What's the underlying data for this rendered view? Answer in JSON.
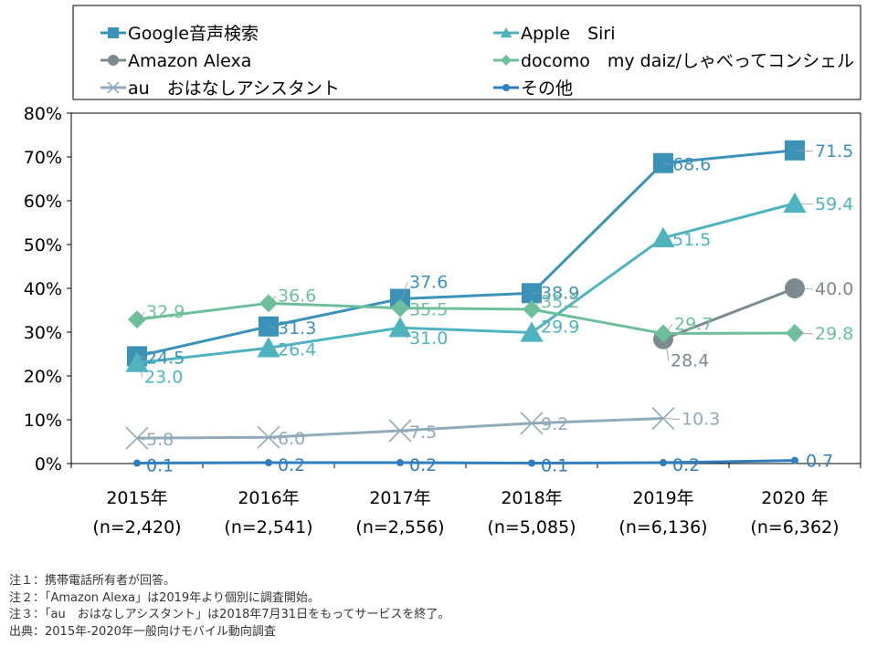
{
  "chart_data": {
    "type": "line",
    "categories": [
      "2015年",
      "2016年",
      "2017年",
      "2018年",
      "2019年",
      "2020 年"
    ],
    "category_sublabels": [
      "(n=2,420)",
      "(n=2,541)",
      "(n=2,556)",
      "(n=5,085)",
      "(n=6,136)",
      "(n=6,362)"
    ],
    "y_ticks": [
      "0%",
      "10%",
      "20%",
      "30%",
      "40%",
      "50%",
      "60%",
      "70%",
      "80%"
    ],
    "ylim": [
      0,
      80
    ],
    "grid": false,
    "legend_position": "top",
    "series": [
      {
        "name": "Google音声検索",
        "color": "#3a92b8",
        "marker": "square",
        "values": [
          24.5,
          31.3,
          37.6,
          38.9,
          68.6,
          71.5
        ],
        "labels": [
          "24.5",
          "31.3",
          "37.6",
          "38.9",
          "68.6",
          "71.5"
        ]
      },
      {
        "name": "Apple　Siri",
        "color": "#4db3bf",
        "marker": "triangle",
        "values": [
          23.0,
          26.4,
          31.0,
          29.9,
          51.5,
          59.4
        ],
        "labels": [
          "23.0",
          "26.4",
          "31.0",
          "29.9",
          "51.5",
          "59.4"
        ]
      },
      {
        "name": "Amazon Alexa",
        "color": "#7a8a8f",
        "marker": "circle",
        "values": [
          null,
          null,
          null,
          null,
          28.4,
          40.0
        ],
        "labels": [
          "",
          "",
          "",
          "",
          "28.4",
          "40.0"
        ]
      },
      {
        "name": "docomo　my daiz/しゃべってコンシェル",
        "color": "#6dbf9c",
        "marker": "diamond",
        "values": [
          32.9,
          36.6,
          35.5,
          35.2,
          29.7,
          29.8
        ],
        "labels": [
          "32.9",
          "36.6",
          "35.5",
          "35.2",
          "29.7",
          "29.8"
        ]
      },
      {
        "name": "au　おはなしアシスタント",
        "color": "#8fabb9",
        "marker": "cross",
        "values": [
          5.8,
          6.0,
          7.5,
          9.2,
          10.3,
          null
        ],
        "labels": [
          "5.8",
          "6.0",
          "7.5",
          "9.2",
          "10.3",
          ""
        ]
      },
      {
        "name": "その他",
        "color": "#2f7fbf",
        "marker": "dot",
        "values": [
          0.1,
          0.2,
          0.2,
          0.1,
          0.2,
          0.7
        ],
        "labels": [
          "0.1",
          "0.2",
          "0.2",
          "0.1",
          "0.2",
          "0.7"
        ]
      }
    ]
  },
  "notes": [
    "注１：携帯電話所有者が回答。",
    "注２：「Amazon Alexa」は2019年より個別に調査開始。",
    "注３：「au　おはなしアシスタント」は2018年7月31日をもってサービスを終了。",
    "出典：2015年-2020年一般向けモバイル動向調査"
  ]
}
